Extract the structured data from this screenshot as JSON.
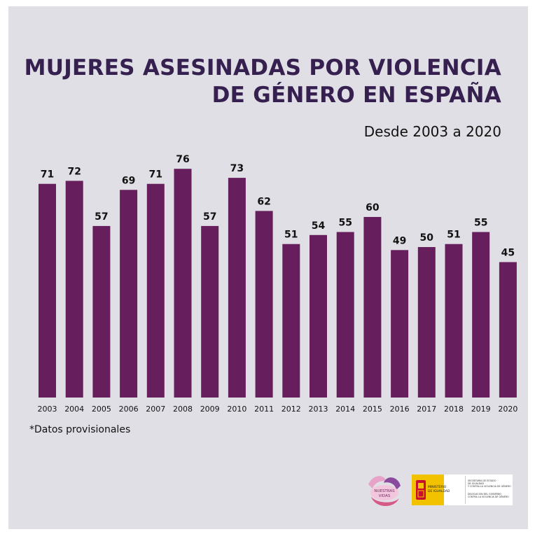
{
  "title_line1": "MUJERES ASESINADAS POR VIOLENCIA",
  "title_line2": "DE GÉNERO EN ESPAÑA",
  "subtitle": "Desde 2003 a 2020",
  "footnote": "*Datos provisionales",
  "colors": {
    "bar": "#671e5c",
    "title": "#35204f",
    "background": "#e0dfe5"
  },
  "logos": {
    "hands_text": "NUESTRAS VIDAS",
    "ministry_text": "MINISTERIO DE IGUALDAD",
    "secretaria_text": "SECRETARÍA DE ESTADO DE IGUALDAD Y CONTRA LA VIOLENCIA DE GÉNERO",
    "delegacion_text": "DELEGACIÓN DEL GOBIERNO CONTRA LA VIOLENCIA DE GÉNERO"
  },
  "chart_data": {
    "type": "bar",
    "categories": [
      "2003",
      "2004",
      "2005",
      "2006",
      "2007",
      "2008",
      "2009",
      "2010",
      "2011",
      "2012",
      "2013",
      "2014",
      "2015",
      "2016",
      "2017",
      "2018",
      "2019",
      "2020"
    ],
    "values": [
      71,
      72,
      57,
      69,
      71,
      76,
      57,
      73,
      62,
      51,
      54,
      55,
      60,
      49,
      50,
      51,
      55,
      45
    ],
    "title": "MUJERES ASESINADAS POR VIOLENCIA DE GÉNERO EN ESPAÑA",
    "subtitle": "Desde 2003 a 2020",
    "xlabel": "",
    "ylabel": "",
    "ylim": [
      0,
      76
    ],
    "grid": false,
    "legend": "none"
  }
}
